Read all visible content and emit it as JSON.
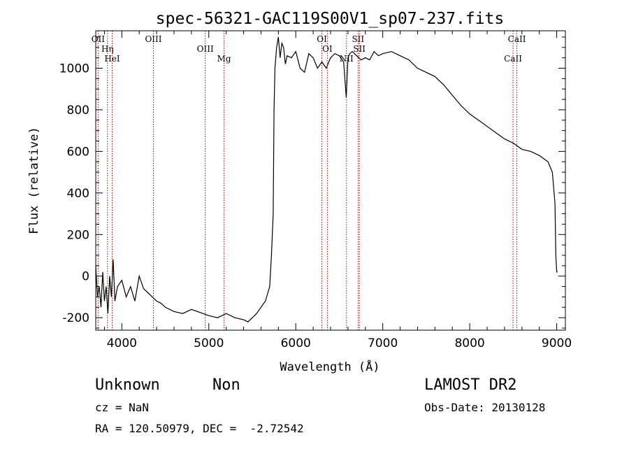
{
  "chart_data": {
    "type": "line",
    "title": "spec-56321-GAC119S00V1_sp07-237.fits",
    "xlabel": "Wavelength (Å)",
    "ylabel": "Flux (relative)",
    "xlim": [
      3700,
      9100
    ],
    "ylim": [
      -260,
      1180
    ],
    "xticks": [
      4000,
      5000,
      6000,
      7000,
      8000,
      9000
    ],
    "yticks": [
      -200,
      0,
      200,
      400,
      600,
      800,
      1000
    ],
    "grid": false,
    "series": [
      {
        "x": [
          3700,
          3720,
          3740,
          3760,
          3780,
          3800,
          3820,
          3840,
          3860,
          3880,
          3900,
          3920,
          3950,
          4000,
          4050,
          4100,
          4150,
          4200,
          4250,
          4300,
          4350,
          4400,
          4450,
          4500,
          4600,
          4700,
          4800,
          4900,
          5000,
          5100,
          5200,
          5300,
          5400,
          5450,
          5500,
          5550,
          5600,
          5650,
          5700,
          5720,
          5740,
          5750,
          5760,
          5780,
          5800,
          5820,
          5840,
          5860,
          5880,
          5900,
          5950,
          6000,
          6050,
          6100,
          6150,
          6200,
          6250,
          6300,
          6350,
          6400,
          6450,
          6500,
          6550,
          6580,
          6600,
          6620,
          6650,
          6700,
          6750,
          6800,
          6850,
          6900,
          6950,
          7000,
          7100,
          7200,
          7300,
          7400,
          7500,
          7600,
          7700,
          7800,
          7900,
          8000,
          8100,
          8200,
          8300,
          8400,
          8500,
          8600,
          8700,
          8800,
          8900,
          8950,
          8980,
          8990,
          9000,
          9010
        ],
        "y": [
          50,
          -100,
          -50,
          -150,
          20,
          -120,
          -50,
          -180,
          0,
          -100,
          80,
          -120,
          -50,
          -20,
          -100,
          -50,
          -120,
          0,
          -60,
          -80,
          -100,
          -120,
          -130,
          -150,
          -170,
          -180,
          -160,
          -175,
          -190,
          -200,
          -180,
          -200,
          -210,
          -220,
          -200,
          -180,
          -150,
          -120,
          -50,
          100,
          300,
          800,
          1000,
          1100,
          1150,
          1050,
          1120,
          1100,
          1020,
          1060,
          1050,
          1080,
          1000,
          980,
          1070,
          1050,
          1000,
          1030,
          1000,
          1050,
          1070,
          1060,
          1030,
          860,
          1050,
          1070,
          1080,
          1060,
          1040,
          1050,
          1040,
          1080,
          1060,
          1070,
          1080,
          1060,
          1040,
          1000,
          980,
          960,
          920,
          870,
          820,
          780,
          750,
          720,
          690,
          660,
          640,
          610,
          600,
          580,
          550,
          500,
          350,
          100,
          20,
          20
        ]
      }
    ],
    "lines": [
      {
        "label": "OII",
        "x": 3727
      },
      {
        "label": "Hη",
        "x": 3835
      },
      {
        "label": "HeI",
        "x": 3889
      },
      {
        "label": "OIII",
        "x": 4363
      },
      {
        "label": "OIII",
        "x": 4959
      },
      {
        "label": "Mg",
        "x": 5175
      },
      {
        "label": "OI",
        "x": 6300
      },
      {
        "label": "OI",
        "x": 6363
      },
      {
        "label": "NII",
        "x": 6583
      },
      {
        "label": "SII",
        "x": 6716
      },
      {
        "label": "SII",
        "x": 6731
      },
      {
        "label": "CaII",
        "x": 8498
      },
      {
        "label": "CaII",
        "x": 8542
      }
    ]
  },
  "info": {
    "class": "Unknown",
    "subclass": "Non",
    "survey": "LAMOST DR2",
    "cz": "cz = NaN",
    "obs_date": "Obs-Date: 20130128",
    "coords": "RA = 120.50979, DEC =  -2.72542"
  }
}
